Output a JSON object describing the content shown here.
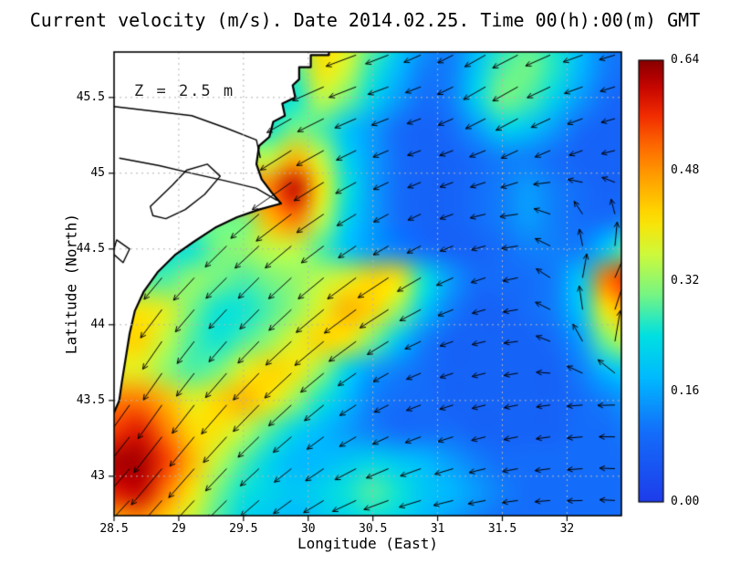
{
  "title": "Current velocity (m/s). Date 2014.02.25. Time 00(h):00(m) GMT",
  "annotation": "Z = 2.5 m",
  "axes": {
    "xlabel": "Longitude (East)",
    "ylabel": "Latitude (North)",
    "x_ticks": [
      "28.5",
      "29",
      "29.5",
      "30",
      "30.5",
      "31",
      "31.5",
      "32"
    ],
    "y_ticks": [
      "43",
      "43.5",
      "44",
      "44.5",
      "45",
      "45.5"
    ],
    "lon_range": [
      28.5,
      32.42
    ],
    "lat_range": [
      42.74,
      45.8
    ]
  },
  "colorbar": {
    "ticks": [
      "0.00",
      "0.16",
      "0.32",
      "0.48",
      "0.64"
    ],
    "min": 0.0,
    "max": 0.64,
    "units": "m/s",
    "stops": [
      [
        0.0,
        30,
        60,
        235
      ],
      [
        0.16,
        20,
        110,
        250
      ],
      [
        0.28,
        0,
        185,
        255
      ],
      [
        0.38,
        0,
        225,
        225
      ],
      [
        0.47,
        120,
        245,
        130
      ],
      [
        0.56,
        205,
        250,
        60
      ],
      [
        0.64,
        255,
        225,
        0
      ],
      [
        0.72,
        255,
        170,
        0
      ],
      [
        0.8,
        255,
        110,
        0
      ],
      [
        0.88,
        240,
        40,
        0
      ],
      [
        0.95,
        190,
        0,
        0
      ],
      [
        1.0,
        135,
        0,
        0
      ]
    ]
  },
  "chart_data": {
    "type": "heatmap",
    "title": "Current velocity (m/s). Date 2014.02.25. Time 00(h):00(m) GMT",
    "depth_m": 2.5,
    "units": "m/s",
    "lon": [
      28.5,
      28.7,
      28.9,
      29.1,
      29.3,
      29.5,
      29.7,
      29.9,
      30.1,
      30.3,
      30.5,
      30.7,
      30.9,
      31.1,
      31.3,
      31.5,
      31.7,
      31.9,
      32.1,
      32.3,
      32.5
    ],
    "lat": [
      45.9,
      45.7,
      45.5,
      45.3,
      45.1,
      44.9,
      44.7,
      44.5,
      44.3,
      44.1,
      43.9,
      43.7,
      43.5,
      43.3,
      43.1,
      42.9,
      42.7
    ],
    "speed": [
      [
        0,
        0,
        0,
        0,
        0,
        0,
        0,
        0.3,
        0.42,
        0.38,
        0.3,
        0.22,
        0.15,
        0.12,
        0.18,
        0.25,
        0.28,
        0.25,
        0.18,
        0.12,
        0.1
      ],
      [
        0,
        0,
        0,
        0,
        0,
        0,
        0,
        0.28,
        0.4,
        0.36,
        0.26,
        0.18,
        0.12,
        0.12,
        0.2,
        0.28,
        0.3,
        0.26,
        0.18,
        0.12,
        0.1
      ],
      [
        0,
        0,
        0,
        0,
        0,
        0,
        0,
        0.25,
        0.35,
        0.3,
        0.22,
        0.15,
        0.1,
        0.12,
        0.22,
        0.3,
        0.28,
        0.22,
        0.15,
        0.1,
        0.08
      ],
      [
        0,
        0,
        0,
        0,
        0,
        0,
        0.25,
        0.3,
        0.28,
        0.2,
        0.15,
        0.1,
        0.08,
        0.1,
        0.15,
        0.22,
        0.2,
        0.15,
        0.1,
        0.08,
        0.08
      ],
      [
        0,
        0,
        0,
        0,
        0,
        0,
        0.35,
        0.45,
        0.35,
        0.22,
        0.15,
        0.1,
        0.08,
        0.08,
        0.1,
        0.12,
        0.12,
        0.1,
        0.08,
        0.08,
        0.08
      ],
      [
        0,
        0,
        0,
        0,
        0,
        0,
        0.5,
        0.6,
        0.4,
        0.25,
        0.15,
        0.1,
        0.08,
        0.08,
        0.1,
        0.12,
        0.15,
        0.12,
        0.1,
        0.08,
        0.08
      ],
      [
        0,
        0,
        0,
        0,
        0,
        0.3,
        0.45,
        0.5,
        0.35,
        0.22,
        0.15,
        0.1,
        0.08,
        0.08,
        0.1,
        0.12,
        0.15,
        0.12,
        0.1,
        0.1,
        0.12
      ],
      [
        0,
        0,
        0,
        0.25,
        0.3,
        0.32,
        0.35,
        0.35,
        0.28,
        0.2,
        0.15,
        0.12,
        0.1,
        0.08,
        0.08,
        0.1,
        0.12,
        0.12,
        0.12,
        0.2,
        0.3
      ],
      [
        0,
        0,
        0.28,
        0.32,
        0.3,
        0.28,
        0.3,
        0.32,
        0.35,
        0.38,
        0.42,
        0.4,
        0.25,
        0.15,
        0.1,
        0.1,
        0.1,
        0.12,
        0.2,
        0.5,
        0.58
      ],
      [
        0,
        0.4,
        0.38,
        0.3,
        0.25,
        0.25,
        0.28,
        0.32,
        0.38,
        0.45,
        0.42,
        0.32,
        0.2,
        0.12,
        0.08,
        0.08,
        0.1,
        0.12,
        0.2,
        0.4,
        0.48
      ],
      [
        0,
        0.42,
        0.35,
        0.28,
        0.25,
        0.28,
        0.32,
        0.38,
        0.42,
        0.4,
        0.3,
        0.2,
        0.12,
        0.08,
        0.08,
        0.08,
        0.08,
        0.1,
        0.15,
        0.3,
        0.38
      ],
      [
        0,
        0.38,
        0.32,
        0.28,
        0.3,
        0.38,
        0.42,
        0.4,
        0.32,
        0.22,
        0.15,
        0.12,
        0.1,
        0.08,
        0.08,
        0.08,
        0.08,
        0.08,
        0.12,
        0.18,
        0.22
      ],
      [
        0,
        0.5,
        0.45,
        0.38,
        0.42,
        0.45,
        0.4,
        0.32,
        0.25,
        0.18,
        0.12,
        0.1,
        0.1,
        0.08,
        0.08,
        0.08,
        0.08,
        0.08,
        0.1,
        0.12,
        0.15
      ],
      [
        0.55,
        0.58,
        0.5,
        0.42,
        0.4,
        0.35,
        0.28,
        0.22,
        0.18,
        0.15,
        0.12,
        0.1,
        0.1,
        0.1,
        0.08,
        0.08,
        0.08,
        0.08,
        0.1,
        0.1,
        0.12
      ],
      [
        0.62,
        0.62,
        0.55,
        0.45,
        0.35,
        0.28,
        0.22,
        0.18,
        0.18,
        0.2,
        0.22,
        0.2,
        0.18,
        0.15,
        0.12,
        0.1,
        0.1,
        0.1,
        0.1,
        0.1,
        0.1
      ],
      [
        0.58,
        0.6,
        0.5,
        0.4,
        0.3,
        0.25,
        0.22,
        0.2,
        0.22,
        0.25,
        0.28,
        0.25,
        0.2,
        0.18,
        0.15,
        0.12,
        0.1,
        0.1,
        0.1,
        0.1,
        0.1
      ],
      [
        0.45,
        0.48,
        0.42,
        0.35,
        0.28,
        0.22,
        0.2,
        0.18,
        0.2,
        0.22,
        0.24,
        0.22,
        0.18,
        0.15,
        0.12,
        0.1,
        0.1,
        0.1,
        0.1,
        0.1,
        0.1
      ]
    ],
    "vectors": {
      "lon": [
        28.5,
        28.9,
        29.3,
        29.7,
        30.1,
        30.5,
        30.9,
        31.3,
        31.7,
        32.1,
        32.5
      ],
      "lat": [
        45.9,
        45.5,
        45.1,
        44.7,
        44.3,
        43.9,
        43.5,
        43.1,
        42.7
      ],
      "direction_deg": [
        [
          210,
          210,
          210,
          205,
          200,
          200,
          205,
          210,
          205,
          200,
          195
        ],
        [
          215,
          215,
          215,
          210,
          205,
          200,
          200,
          210,
          210,
          200,
          195
        ],
        [
          225,
          220,
          220,
          215,
          210,
          205,
          200,
          200,
          205,
          200,
          190
        ],
        [
          230,
          230,
          225,
          220,
          215,
          210,
          205,
          195,
          185,
          120,
          90
        ],
        [
          235,
          230,
          225,
          225,
          220,
          215,
          210,
          200,
          190,
          80,
          60
        ],
        [
          240,
          235,
          230,
          225,
          220,
          215,
          205,
          195,
          185,
          120,
          60
        ],
        [
          235,
          235,
          230,
          225,
          220,
          210,
          200,
          195,
          190,
          185,
          180
        ],
        [
          230,
          230,
          228,
          222,
          215,
          205,
          200,
          195,
          190,
          185,
          175
        ],
        [
          225,
          228,
          225,
          218,
          210,
          200,
          195,
          190,
          185,
          180,
          175
        ]
      ]
    },
    "coastline": [
      [
        30.16,
        45.86
      ],
      [
        30.16,
        45.78
      ],
      [
        30.02,
        45.78
      ],
      [
        30.02,
        45.7
      ],
      [
        29.93,
        45.7
      ],
      [
        29.93,
        45.62
      ],
      [
        29.88,
        45.58
      ],
      [
        29.9,
        45.5
      ],
      [
        29.8,
        45.46
      ],
      [
        29.82,
        45.38
      ],
      [
        29.73,
        45.34
      ],
      [
        29.7,
        45.24
      ],
      [
        29.62,
        45.18
      ],
      [
        29.6,
        45.06
      ],
      [
        29.64,
        44.96
      ],
      [
        29.72,
        44.87
      ],
      [
        29.79,
        44.8
      ],
      [
        29.62,
        44.76
      ],
      [
        29.45,
        44.71
      ],
      [
        29.28,
        44.64
      ],
      [
        29.12,
        44.55
      ],
      [
        28.97,
        44.46
      ],
      [
        28.84,
        44.35
      ],
      [
        28.73,
        44.22
      ],
      [
        28.66,
        44.09
      ],
      [
        28.62,
        43.94
      ],
      [
        28.59,
        43.78
      ],
      [
        28.56,
        43.62
      ],
      [
        28.54,
        43.5
      ],
      [
        28.5,
        43.42
      ],
      [
        28.46,
        43.35
      ]
    ],
    "lagoons": [
      [
        [
          28.78,
          44.78
        ],
        [
          28.95,
          44.92
        ],
        [
          29.06,
          45.02
        ],
        [
          29.22,
          45.06
        ],
        [
          29.32,
          44.98
        ],
        [
          29.2,
          44.86
        ],
        [
          29.05,
          44.76
        ],
        [
          28.9,
          44.7
        ],
        [
          28.8,
          44.72
        ]
      ],
      [
        [
          28.52,
          44.56
        ],
        [
          28.62,
          44.5
        ],
        [
          28.57,
          44.41
        ],
        [
          28.49,
          44.47
        ]
      ]
    ],
    "rivers": [
      [
        [
          28.5,
          45.44
        ],
        [
          28.8,
          45.41
        ],
        [
          29.1,
          45.38
        ],
        [
          29.36,
          45.3
        ],
        [
          29.6,
          45.22
        ],
        [
          29.63,
          45.1
        ]
      ],
      [
        [
          28.54,
          45.1
        ],
        [
          28.85,
          45.05
        ],
        [
          29.1,
          45.0
        ],
        [
          29.36,
          44.95
        ],
        [
          29.6,
          44.9
        ],
        [
          29.76,
          44.82
        ]
      ]
    ]
  }
}
